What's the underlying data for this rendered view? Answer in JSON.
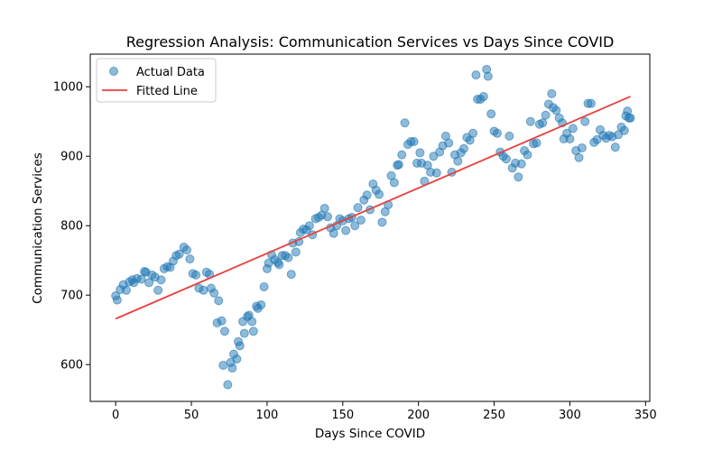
{
  "chart_data": {
    "type": "scatter",
    "title": "Regression Analysis: Communication Services vs Days Since COVID",
    "xlabel": "Days Since COVID",
    "ylabel": "Communication Services",
    "xlim": [
      -16.8,
      352.8
    ],
    "ylim": [
      547,
      1047
    ],
    "x_ticks": [
      0,
      50,
      100,
      150,
      200,
      250,
      300,
      350
    ],
    "y_ticks": [
      600,
      700,
      800,
      900,
      1000
    ],
    "grid": false,
    "legend_position": "top-left",
    "colors": {
      "scatter": "#1f77b4",
      "line": "#e8413f",
      "axis": "#000000"
    },
    "series": [
      {
        "name": "Actual Data",
        "kind": "scatter",
        "points": [
          [
            0,
            699
          ],
          [
            1,
            693
          ],
          [
            3,
            708
          ],
          [
            5,
            715
          ],
          [
            7,
            707
          ],
          [
            9,
            719
          ],
          [
            11,
            722
          ],
          [
            12,
            718
          ],
          [
            14,
            724
          ],
          [
            17,
            723
          ],
          [
            19,
            734
          ],
          [
            20,
            733
          ],
          [
            22,
            718
          ],
          [
            24,
            729
          ],
          [
            26,
            726
          ],
          [
            28,
            707
          ],
          [
            30,
            722
          ],
          [
            32,
            738
          ],
          [
            34,
            741
          ],
          [
            36,
            740
          ],
          [
            38,
            749
          ],
          [
            40,
            757
          ],
          [
            42,
            759
          ],
          [
            45,
            769
          ],
          [
            47,
            765
          ],
          [
            49,
            752
          ],
          [
            51,
            731
          ],
          [
            53,
            729
          ],
          [
            55,
            710
          ],
          [
            58,
            707
          ],
          [
            60,
            733
          ],
          [
            62,
            730
          ],
          [
            63,
            710
          ],
          [
            65,
            703
          ],
          [
            67,
            660
          ],
          [
            68,
            692
          ],
          [
            70,
            663
          ],
          [
            71,
            599
          ],
          [
            72,
            648
          ],
          [
            74,
            571
          ],
          [
            76,
            603
          ],
          [
            77,
            595
          ],
          [
            78,
            615
          ],
          [
            80,
            608
          ],
          [
            81,
            633
          ],
          [
            82,
            627
          ],
          [
            84,
            662
          ],
          [
            85,
            645
          ],
          [
            87,
            669
          ],
          [
            88,
            671
          ],
          [
            90,
            662
          ],
          [
            91,
            648
          ],
          [
            93,
            684
          ],
          [
            94,
            681
          ],
          [
            96,
            686
          ],
          [
            98,
            712
          ],
          [
            100,
            738
          ],
          [
            101,
            746
          ],
          [
            103,
            758
          ],
          [
            105,
            751
          ],
          [
            107,
            747
          ],
          [
            108,
            744
          ],
          [
            110,
            757
          ],
          [
            112,
            757
          ],
          [
            114,
            754
          ],
          [
            116,
            730
          ],
          [
            117,
            775
          ],
          [
            119,
            762
          ],
          [
            121,
            777
          ],
          [
            122,
            790
          ],
          [
            124,
            795
          ],
          [
            126,
            794
          ],
          [
            128,
            800
          ],
          [
            130,
            787
          ],
          [
            132,
            810
          ],
          [
            134,
            812
          ],
          [
            136,
            815
          ],
          [
            138,
            825
          ],
          [
            140,
            813
          ],
          [
            142,
            797
          ],
          [
            144,
            789
          ],
          [
            146,
            800
          ],
          [
            148,
            810
          ],
          [
            150,
            807
          ],
          [
            152,
            793
          ],
          [
            154,
            810
          ],
          [
            156,
            812
          ],
          [
            158,
            800
          ],
          [
            160,
            826
          ],
          [
            162,
            808
          ],
          [
            164,
            837
          ],
          [
            166,
            844
          ],
          [
            168,
            823
          ],
          [
            170,
            860
          ],
          [
            172,
            851
          ],
          [
            174,
            845
          ],
          [
            176,
            805
          ],
          [
            178,
            820
          ],
          [
            180,
            830
          ],
          [
            182,
            872
          ],
          [
            184,
            862
          ],
          [
            186,
            887
          ],
          [
            187,
            888
          ],
          [
            189,
            902
          ],
          [
            191,
            948
          ],
          [
            193,
            917
          ],
          [
            195,
            921
          ],
          [
            197,
            921
          ],
          [
            199,
            890
          ],
          [
            201,
            905
          ],
          [
            202,
            890
          ],
          [
            204,
            864
          ],
          [
            206,
            887
          ],
          [
            208,
            877
          ],
          [
            210,
            900
          ],
          [
            212,
            876
          ],
          [
            214,
            906
          ],
          [
            216,
            915
          ],
          [
            218,
            929
          ],
          [
            220,
            919
          ],
          [
            222,
            877
          ],
          [
            224,
            902
          ],
          [
            226,
            893
          ],
          [
            228,
            905
          ],
          [
            230,
            911
          ],
          [
            232,
            927
          ],
          [
            234,
            923
          ],
          [
            236,
            933
          ],
          [
            238,
            1017
          ],
          [
            239,
            982
          ],
          [
            241,
            982
          ],
          [
            243,
            986
          ],
          [
            245,
            1025
          ],
          [
            246,
            1015
          ],
          [
            248,
            961
          ],
          [
            250,
            936
          ],
          [
            252,
            933
          ],
          [
            254,
            906
          ],
          [
            256,
            900
          ],
          [
            258,
            896
          ],
          [
            260,
            929
          ],
          [
            262,
            883
          ],
          [
            264,
            890
          ],
          [
            266,
            870
          ],
          [
            268,
            889
          ],
          [
            270,
            908
          ],
          [
            272,
            902
          ],
          [
            274,
            950
          ],
          [
            276,
            918
          ],
          [
            278,
            919
          ],
          [
            280,
            946
          ],
          [
            282,
            948
          ],
          [
            284,
            959
          ],
          [
            286,
            975
          ],
          [
            288,
            990
          ],
          [
            289,
            970
          ],
          [
            291,
            966
          ],
          [
            293,
            955
          ],
          [
            295,
            948
          ],
          [
            296,
            925
          ],
          [
            298,
            933
          ],
          [
            300,
            925
          ],
          [
            302,
            940
          ],
          [
            304,
            908
          ],
          [
            306,
            898
          ],
          [
            308,
            912
          ],
          [
            310,
            950
          ],
          [
            312,
            976
          ],
          [
            314,
            976
          ],
          [
            316,
            920
          ],
          [
            318,
            924
          ],
          [
            320,
            938
          ],
          [
            322,
            930
          ],
          [
            324,
            926
          ],
          [
            326,
            930
          ],
          [
            328,
            928
          ],
          [
            330,
            913
          ],
          [
            332,
            931
          ],
          [
            334,
            942
          ],
          [
            336,
            937
          ],
          [
            337,
            958
          ],
          [
            338,
            965
          ],
          [
            339,
            955
          ],
          [
            340,
            955
          ]
        ]
      },
      {
        "name": "Fitted Line",
        "kind": "line",
        "points": [
          [
            0,
            666
          ],
          [
            340,
            986
          ]
        ]
      }
    ]
  }
}
